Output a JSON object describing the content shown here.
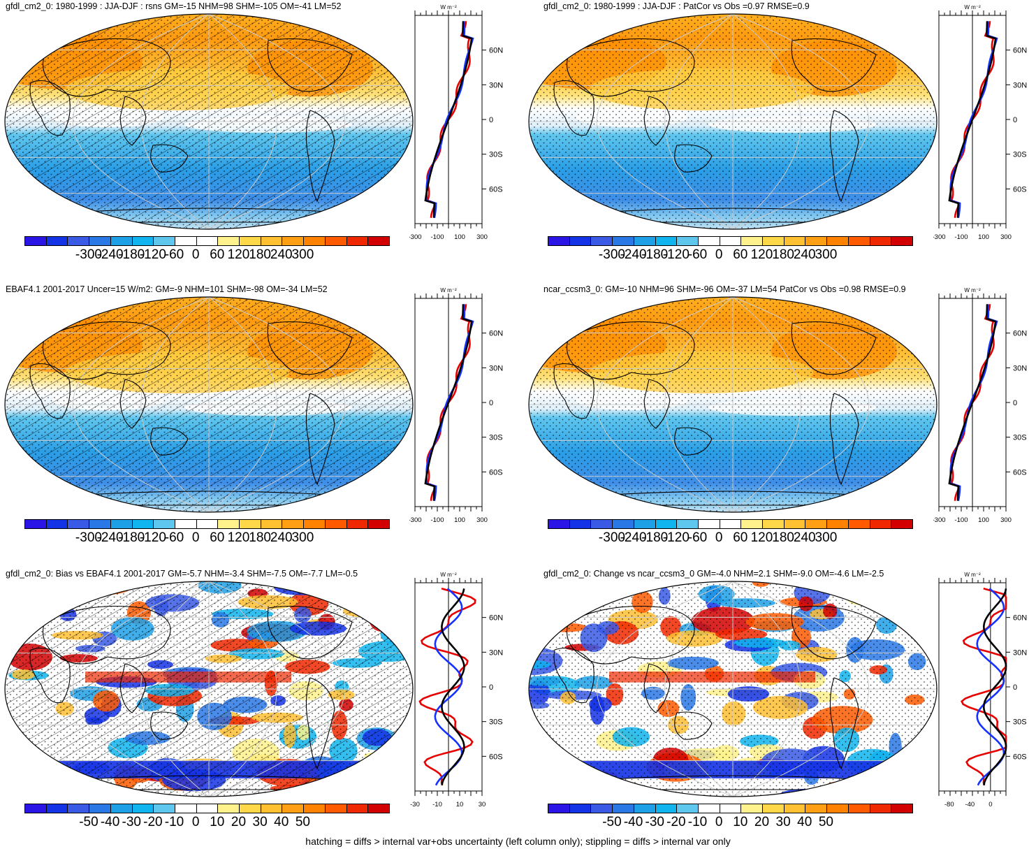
{
  "palette": [
    "#2b14e6",
    "#1432e6",
    "#3a5ae6",
    "#2a78e6",
    "#1ea0e6",
    "#10b4ee",
    "#5fc6ee",
    "#ffffff",
    "#ffffff",
    "#fff28c",
    "#ffd84a",
    "#ffc032",
    "#ffa014",
    "#ff8200",
    "#ff5a00",
    "#f02800",
    "#d20000"
  ],
  "line_colors": {
    "model": "#e60000",
    "obs": "#1432ff",
    "ref": "#000000"
  },
  "zonal_y_ticks": [
    "60N",
    "30N",
    "0",
    "30S",
    "60S"
  ],
  "zonal_unit": "W m⁻²",
  "panels": [
    {
      "title": "gfdl_cm2_0: 1980-1999 : JJA-DJF : rsns GM=-15 NHM=98 SHM=-105 OM=-41 LM=52",
      "kind": "mean",
      "hatch": true,
      "colorbar_labels": [
        "-300",
        "-240",
        "-180",
        "-120",
        "-60",
        "0",
        "60",
        "120",
        "180",
        "240",
        "300"
      ],
      "zonal_x_ticks": [
        "-300",
        "-100",
        "100",
        "300"
      ],
      "zonal_range": [
        -300,
        300
      ]
    },
    {
      "title": "gfdl_cm2_0: 1980-1999 : JJA-DJF : PatCor vs Obs =0.97 RMSE=0.9",
      "kind": "mean",
      "hatch": false,
      "colorbar_labels": [
        "-300",
        "-240",
        "-180",
        "-120",
        "-60",
        "0",
        "60",
        "120",
        "180",
        "240",
        "300"
      ],
      "zonal_x_ticks": [
        "-300",
        "-100",
        "100",
        "300"
      ],
      "zonal_range": [
        -300,
        300
      ]
    },
    {
      "title": "EBAF4.1 2001-2017 Uncer=15 W/m2: GM=-9 NHM=101 SHM=-98 OM=-34 LM=52",
      "kind": "mean",
      "hatch": true,
      "colorbar_labels": [
        "-300",
        "-240",
        "-180",
        "-120",
        "-60",
        "0",
        "60",
        "120",
        "180",
        "240",
        "300"
      ],
      "zonal_x_ticks": [
        "-300",
        "-100",
        "100",
        "300"
      ],
      "zonal_range": [
        -300,
        300
      ]
    },
    {
      "title": "ncar_ccsm3_0: GM=-10 NHM=96 SHM=-96 OM=-37 LM=54 PatCor vs Obs =0.98 RMSE=0.9",
      "kind": "mean",
      "hatch": false,
      "colorbar_labels": [
        "-300",
        "-240",
        "-180",
        "-120",
        "-60",
        "0",
        "60",
        "120",
        "180",
        "240",
        "300"
      ],
      "zonal_x_ticks": [
        "-300",
        "-100",
        "100",
        "300"
      ],
      "zonal_range": [
        -300,
        300
      ]
    },
    {
      "title": "gfdl_cm2_0: Bias vs EBAF4.1 2001-2017 GM=-5.7 NHM=-3.4 SHM=-7.5 OM=-7.7 LM=-0.5",
      "kind": "diff",
      "hatch": true,
      "colorbar_labels": [
        "-50",
        "-40",
        "-30",
        "-20",
        "-10",
        "0",
        "10",
        "20",
        "30",
        "40",
        "50"
      ],
      "zonal_x_ticks": [
        "-30",
        "-10",
        "10",
        "30"
      ],
      "zonal_range": [
        -30,
        30
      ]
    },
    {
      "title": "gfdl_cm2_0: Change vs ncar_ccsm3_0 GM=-4.0 NHM=2.1 SHM=-9.0 OM=-4.6 LM=-2.5",
      "kind": "diff",
      "hatch": false,
      "colorbar_labels": [
        "-50",
        "-40",
        "-30",
        "-20",
        "-10",
        "0",
        "10",
        "20",
        "30",
        "40",
        "50"
      ],
      "zonal_x_ticks": [
        "-80",
        "-40",
        "0"
      ],
      "zonal_range": [
        -100,
        30
      ]
    }
  ],
  "footer": "hatching = diffs > internal var+obs uncertainty (left column only); stippling = diffs > internal var only"
}
